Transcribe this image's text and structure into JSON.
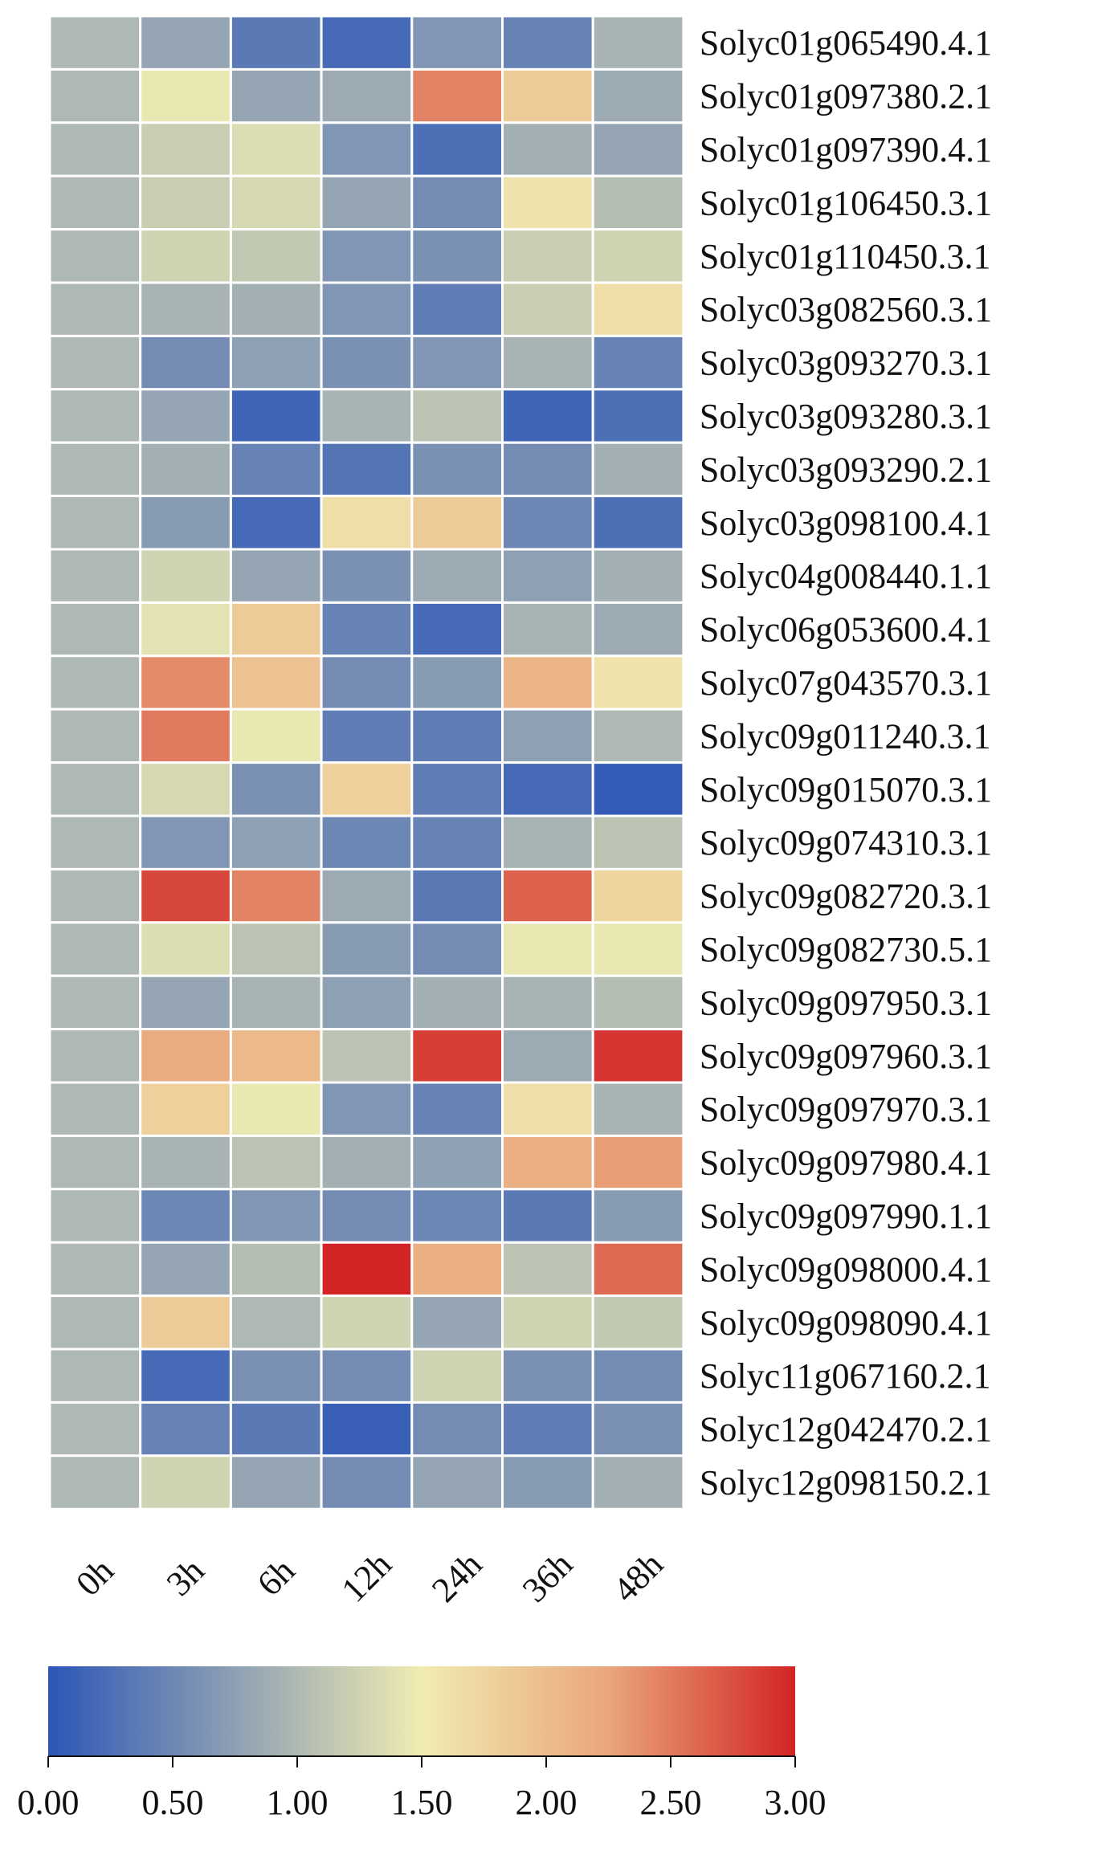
{
  "chart_data": {
    "type": "heatmap",
    "columns": [
      "0h",
      "3h",
      "6h",
      "12h",
      "24h",
      "36h",
      "48h"
    ],
    "rows": [
      "Solyc01g065490.4.1",
      "Solyc01g097380.2.1",
      "Solyc01g097390.4.1",
      "Solyc01g106450.3.1",
      "Solyc01g110450.3.1",
      "Solyc03g082560.3.1",
      "Solyc03g093270.3.1",
      "Solyc03g093280.3.1",
      "Solyc03g093290.2.1",
      "Solyc03g098100.4.1",
      "Solyc04g008440.1.1",
      "Solyc06g053600.4.1",
      "Solyc07g043570.3.1",
      "Solyc09g011240.3.1",
      "Solyc09g015070.3.1",
      "Solyc09g074310.3.1",
      "Solyc09g082720.3.1",
      "Solyc09g082730.5.1",
      "Solyc09g097950.3.1",
      "Solyc09g097960.3.1",
      "Solyc09g097970.3.1",
      "Solyc09g097980.4.1",
      "Solyc09g097990.1.1",
      "Solyc09g098000.4.1",
      "Solyc09g098090.4.1",
      "Solyc11g067160.2.1",
      "Solyc12g042470.2.1",
      "Solyc12g098150.2.1"
    ],
    "values": [
      [
        1.0,
        0.8,
        0.35,
        0.2,
        0.65,
        0.45,
        0.95
      ],
      [
        1.0,
        1.45,
        0.8,
        0.85,
        2.45,
        1.85,
        0.85
      ],
      [
        1.0,
        1.2,
        1.35,
        0.65,
        0.25,
        0.9,
        0.8
      ],
      [
        1.0,
        1.2,
        1.3,
        0.8,
        0.55,
        1.6,
        1.05
      ],
      [
        1.0,
        1.25,
        1.15,
        0.65,
        0.6,
        1.2,
        1.25
      ],
      [
        1.0,
        0.95,
        0.9,
        0.65,
        0.4,
        1.2,
        1.65
      ],
      [
        1.0,
        0.55,
        0.75,
        0.6,
        0.65,
        0.95,
        0.45
      ],
      [
        1.0,
        0.8,
        0.15,
        0.95,
        1.1,
        0.15,
        0.25
      ],
      [
        1.0,
        0.9,
        0.45,
        0.3,
        0.6,
        0.55,
        0.9
      ],
      [
        1.0,
        0.7,
        0.2,
        1.65,
        1.85,
        0.5,
        0.25
      ],
      [
        1.0,
        1.25,
        0.8,
        0.6,
        0.85,
        0.75,
        0.9
      ],
      [
        1.0,
        1.4,
        1.85,
        0.45,
        0.2,
        0.95,
        0.85
      ],
      [
        1.0,
        2.4,
        1.95,
        0.55,
        0.7,
        2.1,
        1.6
      ],
      [
        1.0,
        2.5,
        1.45,
        0.4,
        0.4,
        0.75,
        1.0
      ],
      [
        1.0,
        1.3,
        0.6,
        1.8,
        0.4,
        0.2,
        0.05
      ],
      [
        1.0,
        0.65,
        0.75,
        0.5,
        0.45,
        0.95,
        1.1
      ],
      [
        1.0,
        2.8,
        2.45,
        0.85,
        0.35,
        2.65,
        1.75
      ],
      [
        1.0,
        1.35,
        1.1,
        0.7,
        0.55,
        1.45,
        1.45
      ],
      [
        1.0,
        0.8,
        0.95,
        0.75,
        0.9,
        0.95,
        1.05
      ],
      [
        1.0,
        2.2,
        2.05,
        1.1,
        2.85,
        0.85,
        2.9
      ],
      [
        1.0,
        1.8,
        1.45,
        0.65,
        0.45,
        1.65,
        0.95
      ],
      [
        1.0,
        0.95,
        1.1,
        0.9,
        0.75,
        2.15,
        2.3
      ],
      [
        1.0,
        0.5,
        0.65,
        0.55,
        0.5,
        0.35,
        0.7
      ],
      [
        1.0,
        0.8,
        1.05,
        3.0,
        2.15,
        1.1,
        2.6
      ],
      [
        1.0,
        1.85,
        1.0,
        1.25,
        0.8,
        1.25,
        1.15
      ],
      [
        1.0,
        0.2,
        0.6,
        0.55,
        1.25,
        0.6,
        0.55
      ],
      [
        1.0,
        0.45,
        0.35,
        0.1,
        0.55,
        0.4,
        0.6
      ],
      [
        1.0,
        1.25,
        0.8,
        0.55,
        0.8,
        0.7,
        0.9
      ]
    ],
    "colorbar": {
      "min": 0.0,
      "max": 3.0,
      "ticks": [
        "0.00",
        "0.50",
        "1.00",
        "1.50",
        "2.00",
        "2.50",
        "3.00"
      ],
      "colors": [
        "#2c56b7",
        "#8ea0b3",
        "#f0ecb2",
        "#e9a67c",
        "#d22424"
      ]
    }
  }
}
